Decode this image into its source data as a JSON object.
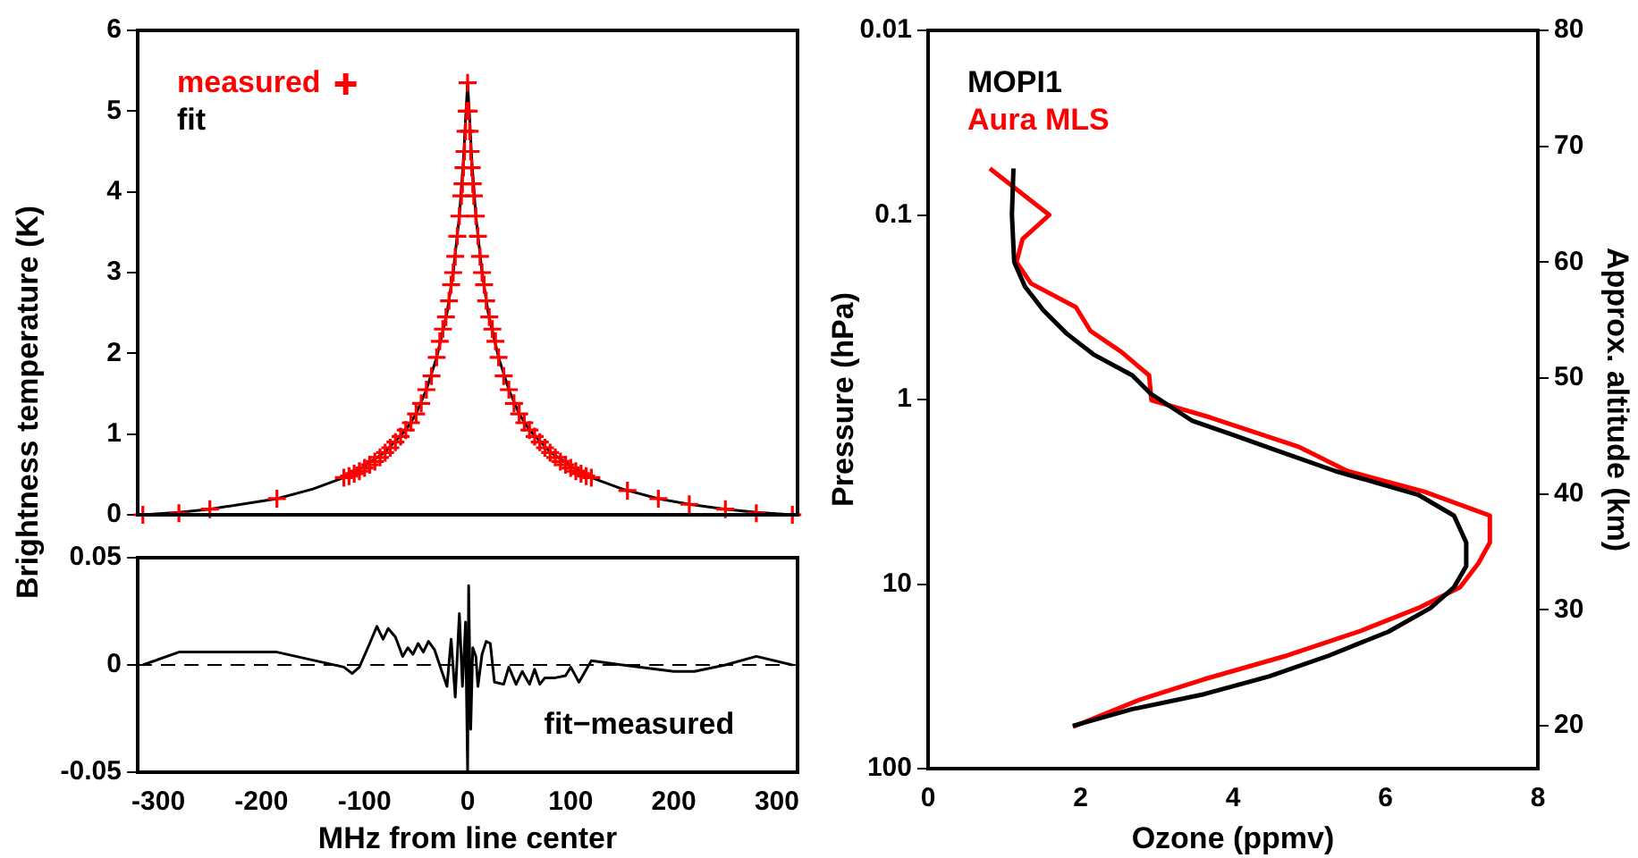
{
  "chart_data": [
    {
      "type": "line",
      "ylabel": "Brightness temperature (K)",
      "xlim": [
        -320,
        320
      ],
      "xticks": [
        -300,
        -200,
        -100,
        0,
        100,
        200,
        300
      ],
      "ylim": [
        0,
        6
      ],
      "yticks": [
        0,
        1,
        2,
        3,
        4,
        5,
        6
      ],
      "tick_labels": "y",
      "legend": "top left",
      "series": [
        {
          "name": "measured",
          "type": "scatter",
          "marker": "cross",
          "color": "#ff0000",
          "x": [
            -315,
            -280,
            -250,
            -185,
            -120,
            -115,
            -110,
            -105,
            -100,
            -95,
            -90,
            -85,
            -80,
            -75,
            -70,
            -65,
            -60,
            -55,
            -50,
            -45,
            -40,
            -35,
            -30,
            -27,
            -24,
            -21,
            -18,
            -16,
            -14,
            -12,
            -10,
            -8,
            -6,
            -5,
            -4,
            -3,
            -2,
            -1,
            0,
            1,
            2,
            3,
            4,
            5,
            6,
            8,
            10,
            12,
            14,
            16,
            18,
            21,
            24,
            27,
            30,
            35,
            40,
            45,
            50,
            55,
            60,
            65,
            70,
            75,
            80,
            85,
            90,
            95,
            100,
            105,
            110,
            115,
            120,
            155,
            185,
            215,
            250,
            280,
            315
          ],
          "values": [
            0,
            0.02,
            0.07,
            0.2,
            0.46,
            0.48,
            0.51,
            0.54,
            0.58,
            0.62,
            0.66,
            0.71,
            0.77,
            0.83,
            0.9,
            0.97,
            1.05,
            1.14,
            1.25,
            1.38,
            1.55,
            1.72,
            1.95,
            2.15,
            2.3,
            2.45,
            2.65,
            2.85,
            3,
            3.2,
            3.45,
            3.7,
            3.95,
            4.1,
            4.3,
            4.5,
            4.75,
            5,
            5.35,
            5,
            4.75,
            4.5,
            4.3,
            4.1,
            3.95,
            3.7,
            3.45,
            3.2,
            3,
            2.85,
            2.65,
            2.45,
            2.3,
            2.15,
            1.95,
            1.72,
            1.55,
            1.38,
            1.25,
            1.14,
            1.05,
            0.97,
            0.9,
            0.83,
            0.77,
            0.71,
            0.66,
            0.62,
            0.58,
            0.54,
            0.51,
            0.48,
            0.46,
            0.3,
            0.2,
            0.13,
            0.07,
            0.02,
            0
          ]
        },
        {
          "name": "fit",
          "type": "line",
          "marker": "none",
          "color": "#000000",
          "x": [
            -315,
            -280,
            -250,
            -185,
            -150,
            -120,
            -100,
            -80,
            -60,
            -50,
            -40,
            -30,
            -20,
            -14,
            -8,
            -4,
            -2,
            0,
            2,
            4,
            8,
            14,
            20,
            30,
            40,
            50,
            60,
            80,
            100,
            120,
            150,
            185,
            215,
            250,
            280,
            315
          ],
          "values": [
            0,
            0.03,
            0.07,
            0.2,
            0.32,
            0.46,
            0.6,
            0.78,
            1.05,
            1.25,
            1.55,
            1.95,
            2.5,
            3,
            3.7,
            4.4,
            4.9,
            5.35,
            4.9,
            4.4,
            3.7,
            3,
            2.5,
            1.95,
            1.55,
            1.25,
            1.05,
            0.78,
            0.6,
            0.46,
            0.32,
            0.2,
            0.13,
            0.07,
            0.03,
            0
          ]
        }
      ]
    },
    {
      "type": "line",
      "xlabel": "MHz from line center",
      "xlim": [
        -320,
        320
      ],
      "xticks": [
        -300,
        -200,
        -100,
        0,
        100,
        200,
        300
      ],
      "ylim": [
        -0.05,
        0.05
      ],
      "yticks": [
        -0.05,
        0,
        0.05
      ],
      "ref_lines": [
        {
          "axis": "y",
          "value": 0,
          "line_style": "dashed",
          "color": "#000000"
        }
      ],
      "annotations": [
        "fit−measured"
      ],
      "series": [
        {
          "color": "#000000",
          "x": [
            -315,
            -280,
            -185,
            -120,
            -112,
            -105,
            -95,
            -88,
            -82,
            -77,
            -70,
            -63,
            -58,
            -53,
            -48,
            -43,
            -38,
            -32,
            -25,
            -20,
            -16,
            -12,
            -8,
            -5,
            -2,
            0,
            1,
            3,
            5,
            8,
            10,
            14,
            18,
            22,
            26,
            35,
            40,
            47,
            53,
            60,
            65,
            70,
            75,
            85,
            95,
            100,
            108,
            120,
            150,
            200,
            220,
            250,
            280,
            315
          ],
          "values": [
            0,
            0.006,
            0.006,
            -0.001,
            -0.004,
            -0.001,
            0.01,
            0.018,
            0.012,
            0.017,
            0.013,
            0.004,
            0.008,
            0.005,
            0.01,
            0.006,
            0.011,
            0.007,
            -0.003,
            -0.01,
            0.012,
            -0.015,
            0.024,
            -0.01,
            0.02,
            -0.05,
            0.037,
            -0.03,
            0.008,
            0.004,
            -0.01,
            0.005,
            0.011,
            0.01,
            -0.008,
            -0.009,
            -0.001,
            -0.009,
            -0.003,
            -0.009,
            -0.002,
            -0.009,
            -0.006,
            -0.006,
            -0.005,
            -0.001,
            -0.008,
            0.002,
            0,
            -0.003,
            -0.003,
            0,
            0.004,
            0
          ]
        }
      ]
    },
    {
      "type": "line",
      "xlabel": "Ozone (ppmv)",
      "ylabel": "Pressure (hPa)",
      "y2label": "Approx. altitude (km)",
      "xlim": [
        0,
        8
      ],
      "xticks": [
        0,
        2,
        4,
        6,
        8
      ],
      "ylim": [
        100,
        0.01
      ],
      "yticks": [
        0.01,
        0.1,
        1,
        10,
        100
      ],
      "log": "y",
      "y2lim": [
        16.3,
        80
      ],
      "y2ticks": [
        20,
        30,
        40,
        50,
        60,
        70,
        80
      ],
      "legend": "top left",
      "series": [
        {
          "name": "MOPI1",
          "color": "#000000",
          "x": [
            1.12,
            1.1,
            1.13,
            1.27,
            1.51,
            1.82,
            2.17,
            2.68,
            2.92,
            3.46,
            4.01,
            4.56,
            5.34,
            5.89,
            6.43,
            6.9,
            7.06,
            7.06,
            6.9,
            6.59,
            6.04,
            5.26,
            4.48,
            3.62,
            2.68,
            1.9
          ],
          "values": [
            0.056,
            0.1,
            0.18,
            0.244,
            0.328,
            0.44,
            0.57,
            0.74,
            0.93,
            1.3,
            1.56,
            1.88,
            2.44,
            2.83,
            3.28,
            4.26,
            5.95,
            8,
            10.4,
            13.5,
            18.1,
            24.4,
            31.6,
            39.5,
            47.6,
            58.6
          ]
        },
        {
          "name": "Aura MLS",
          "color": "#ff0000",
          "x": [
            0.81,
            1.59,
            1.24,
            1.16,
            1.35,
            1.94,
            2.13,
            2.53,
            2.9,
            2.93,
            3.7,
            4.87,
            5.5,
            6.51,
            7.37,
            7.37,
            7.22,
            6.98,
            6.43,
            5.65,
            4.71,
            3.62,
            2.76,
            1.9
          ],
          "values": [
            0.056,
            0.1,
            0.135,
            0.18,
            0.235,
            0.316,
            0.425,
            0.55,
            0.74,
            1.01,
            1.25,
            1.81,
            2.44,
            3.16,
            4.26,
            5.95,
            7.71,
            10.4,
            13.5,
            18.1,
            24.4,
            32.8,
            42.6,
            59.4
          ]
        }
      ]
    }
  ]
}
